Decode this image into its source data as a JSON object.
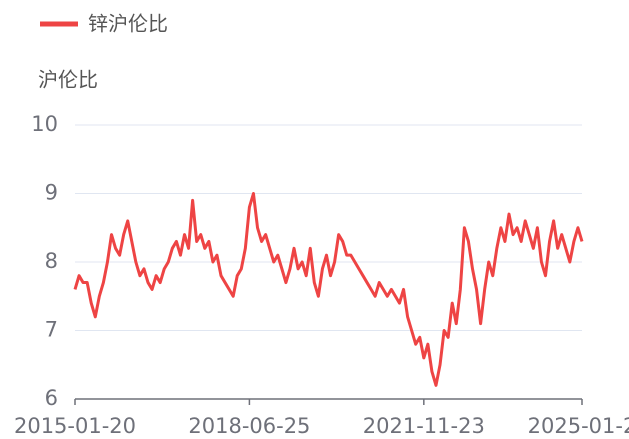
{
  "chart_data": {
    "type": "line",
    "legend": "top-left",
    "y_axis_label": "沪伦比",
    "categories": [
      "2015-01-20",
      null,
      null,
      null,
      null,
      null,
      null,
      null,
      null,
      null,
      null,
      null,
      null,
      null,
      null,
      null,
      null,
      null,
      null,
      null,
      null,
      null,
      null,
      null,
      null,
      null,
      null,
      null,
      null,
      null,
      null,
      null,
      null,
      null,
      null,
      null,
      null,
      null,
      null,
      null,
      null,
      null,
      null,
      "2018-06-25",
      null,
      null,
      null,
      null,
      null,
      null,
      null,
      null,
      null,
      null,
      null,
      null,
      null,
      null,
      null,
      null,
      null,
      null,
      null,
      null,
      null,
      null,
      null,
      null,
      null,
      null,
      null,
      null,
      null,
      null,
      null,
      null,
      null,
      null,
      null,
      null,
      null,
      null,
      null,
      null,
      null,
      null,
      "2021-11-23",
      null,
      null,
      null,
      null,
      null,
      null,
      null,
      null,
      null,
      null,
      null,
      null,
      null,
      null,
      null,
      null,
      null,
      null,
      null,
      null,
      null,
      null,
      null,
      null,
      null,
      null,
      null,
      null,
      null,
      null,
      null,
      null,
      null,
      null,
      null,
      null,
      null,
      null,
      "2025-01-2"
    ],
    "series": [
      {
        "name": "锌沪伦比",
        "color": "#ee4444",
        "values": [
          7.6,
          7.8,
          7.7,
          7.7,
          7.4,
          7.2,
          7.5,
          7.7,
          8.0,
          8.4,
          8.2,
          8.1,
          8.4,
          8.6,
          8.3,
          8.0,
          7.8,
          7.9,
          7.7,
          7.6,
          7.8,
          7.7,
          7.9,
          8.0,
          8.2,
          8.3,
          8.1,
          8.4,
          8.2,
          8.9,
          8.3,
          8.4,
          8.2,
          8.3,
          8.0,
          8.1,
          7.8,
          7.7,
          7.6,
          7.5,
          7.8,
          7.9,
          8.2,
          8.8,
          9.0,
          8.5,
          8.3,
          8.4,
          8.2,
          8.0,
          8.1,
          7.9,
          7.7,
          7.9,
          8.2,
          7.9,
          8.0,
          7.8,
          8.2,
          7.7,
          7.5,
          7.9,
          8.1,
          7.8,
          8.0,
          8.4,
          8.3,
          8.1,
          8.1,
          8.0,
          7.9,
          7.8,
          7.7,
          7.6,
          7.5,
          7.7,
          7.6,
          7.5,
          7.6,
          7.5,
          7.4,
          7.6,
          7.2,
          7.0,
          6.8,
          6.9,
          6.6,
          6.8,
          6.4,
          6.2,
          6.5,
          7.0,
          6.9,
          7.4,
          7.1,
          7.6,
          8.5,
          8.3,
          7.9,
          7.6,
          7.1,
          7.6,
          8.0,
          7.8,
          8.2,
          8.5,
          8.3,
          8.7,
          8.4,
          8.5,
          8.3,
          8.6,
          8.4,
          8.2,
          8.5,
          8.0,
          7.8,
          8.3,
          8.6,
          8.2,
          8.4,
          8.2,
          8.0,
          8.3,
          8.5,
          8.3
        ]
      }
    ],
    "ylim": [
      6,
      10
    ],
    "yticks": [
      6,
      7,
      8,
      9,
      10
    ],
    "grid": true
  }
}
